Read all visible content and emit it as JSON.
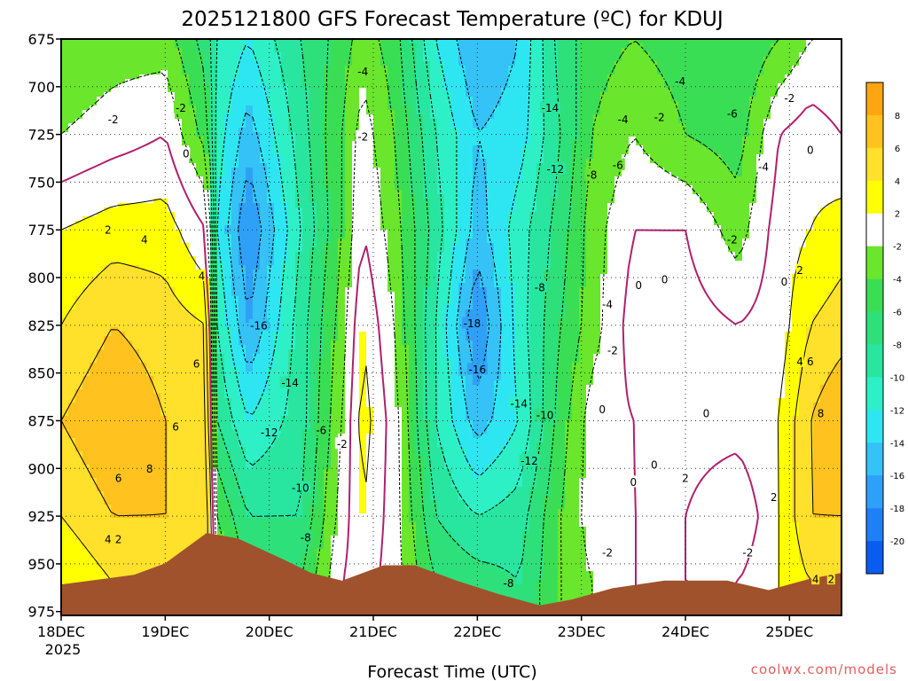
{
  "chart_data": {
    "type": "heatmap",
    "title": "2025121800 GFS Forecast Temperature (ºC) for KDUJ",
    "xlabel": "Forecast Time (UTC)",
    "x_ticks": [
      "18DEC",
      "19DEC",
      "20DEC",
      "21DEC",
      "22DEC",
      "23DEC",
      "24DEC",
      "25DEC"
    ],
    "x_year_label": "2025",
    "xlim_days": [
      18.0,
      25.5
    ],
    "y_ticks": [
      675,
      700,
      725,
      750,
      775,
      800,
      825,
      850,
      875,
      900,
      925,
      950,
      975
    ],
    "ylim": [
      675,
      977
    ],
    "colorbar": {
      "levels": [
        -22,
        -20,
        -18,
        -16,
        -14,
        -12,
        -10,
        -8,
        -6,
        -4,
        -2,
        2,
        4,
        6,
        8,
        10
      ],
      "labels": [
        "-20",
        "-18",
        "-16",
        "-14",
        "-12",
        "-10",
        "-8",
        "-6",
        "-4",
        "-2",
        "2",
        "4",
        "6",
        "8"
      ],
      "colors": [
        "#0a5cf0",
        "#1f7ff5",
        "#2fa0f7",
        "#34c2f7",
        "#2ee6f2",
        "#2ef0c6",
        "#28e6a0",
        "#2ee07a",
        "#3ade55",
        "#6ae62c",
        "#ffffff",
        "#ffff00",
        "#ffe02a",
        "#ffc21e",
        "#ffa512"
      ]
    },
    "columns": [
      {
        "day": 18.0,
        "t": {
          "675": -4,
          "725": -2,
          "775": 2,
          "825": 4,
          "875": 6,
          "925": 4,
          "960": 2
        }
      },
      {
        "day": 18.5,
        "t": {
          "675": -3,
          "725": -1,
          "775": 3,
          "825": 6,
          "875": 8,
          "925": 6,
          "960": 4
        }
      },
      {
        "day": 19.0,
        "t": {
          "675": -3,
          "725": 0,
          "775": 3,
          "825": 5,
          "875": 6,
          "925": 6,
          "960": 5
        }
      },
      {
        "day": 19.4,
        "t": {
          "675": -7,
          "725": -5,
          "775": 0,
          "825": 4,
          "875": 5,
          "925": 6,
          "960": 6
        }
      },
      {
        "day": 19.5,
        "t": {
          "675": -10,
          "725": -11,
          "775": -12,
          "825": -10,
          "875": -8,
          "925": -4,
          "960": -2
        }
      },
      {
        "day": 19.8,
        "t": {
          "675": -12,
          "725": -15,
          "775": -18,
          "825": -16,
          "875": -12,
          "925": -8,
          "960": -6
        }
      },
      {
        "day": 20.3,
        "t": {
          "675": -8,
          "725": -9,
          "775": -10,
          "825": -9,
          "875": -9,
          "925": -8,
          "960": -6
        }
      },
      {
        "day": 20.7,
        "t": {
          "675": -5,
          "725": -4,
          "775": -4,
          "825": -3,
          "875": -2,
          "925": -1,
          "960": 0
        }
      },
      {
        "day": 20.9,
        "t": {
          "675": -3,
          "725": -1,
          "775": 0,
          "825": 2,
          "875": 3,
          "925": 2,
          "960": 1
        }
      },
      {
        "day": 21.2,
        "t": {
          "675": -5,
          "725": -4,
          "775": -3,
          "825": -2,
          "875": -1,
          "925": -1,
          "960": -1
        }
      },
      {
        "day": 21.6,
        "t": {
          "675": -12,
          "725": -10,
          "775": -9,
          "825": -10,
          "875": -10,
          "925": -8,
          "960": -6
        }
      },
      {
        "day": 22.0,
        "t": {
          "675": -16,
          "725": -14,
          "775": -15,
          "825": -18,
          "875": -15,
          "925": -10,
          "960": -7
        }
      },
      {
        "day": 22.4,
        "t": {
          "675": -14,
          "725": -13,
          "775": -11,
          "825": -11,
          "875": -12,
          "925": -9,
          "960": -8
        }
      },
      {
        "day": 22.8,
        "t": {
          "675": -7,
          "725": -8,
          "775": -7,
          "825": -6,
          "875": -5,
          "925": -4,
          "960": -4
        }
      },
      {
        "day": 23.1,
        "t": {
          "675": -5,
          "725": -4,
          "775": -3,
          "825": -3,
          "875": -1,
          "925": -1,
          "960": -2
        }
      },
      {
        "day": 23.5,
        "t": {
          "675": -4,
          "725": -2,
          "775": 0,
          "825": 1,
          "875": 0,
          "925": 0,
          "960": 0
        }
      },
      {
        "day": 24.0,
        "t": {
          "675": -5,
          "725": -4,
          "775": 0,
          "825": 1,
          "875": 1,
          "925": 0,
          "960": 0
        }
      },
      {
        "day": 24.5,
        "t": {
          "675": -6,
          "725": -5,
          "775": -3,
          "825": 0,
          "875": 1,
          "925": -2,
          "960": 0
        }
      },
      {
        "day": 24.9,
        "t": {
          "675": -4,
          "725": 0,
          "775": 1,
          "825": 1,
          "875": 2,
          "925": 2,
          "960": 2
        }
      },
      {
        "day": 25.2,
        "t": {
          "675": -2,
          "725": 1,
          "775": 2,
          "825": 4,
          "875": 6,
          "925": 6,
          "960": 4
        }
      },
      {
        "day": 25.5,
        "t": {
          "675": -2,
          "725": 0,
          "775": 3,
          "825": 5,
          "875": 8,
          "925": 6,
          "960": 4
        }
      }
    ],
    "terrain_surface": [
      {
        "day": 18.0,
        "p": 961
      },
      {
        "day": 18.7,
        "p": 956
      },
      {
        "day": 19.0,
        "p": 950
      },
      {
        "day": 19.4,
        "p": 934
      },
      {
        "day": 19.7,
        "p": 937
      },
      {
        "day": 20.1,
        "p": 947
      },
      {
        "day": 20.4,
        "p": 955
      },
      {
        "day": 20.7,
        "p": 959
      },
      {
        "day": 21.1,
        "p": 951
      },
      {
        "day": 21.4,
        "p": 951
      },
      {
        "day": 21.8,
        "p": 959
      },
      {
        "day": 22.2,
        "p": 966
      },
      {
        "day": 22.6,
        "p": 972
      },
      {
        "day": 22.9,
        "p": 969
      },
      {
        "day": 23.3,
        "p": 963
      },
      {
        "day": 23.8,
        "p": 959
      },
      {
        "day": 24.4,
        "p": 959
      },
      {
        "day": 24.8,
        "p": 964
      },
      {
        "day": 25.2,
        "p": 958
      },
      {
        "day": 25.5,
        "p": 955
      }
    ],
    "contour_labels": [
      {
        "text": "-2",
        "day": 18.5,
        "p": 717
      },
      {
        "text": "-2",
        "day": 19.15,
        "p": 711
      },
      {
        "text": "0",
        "day": 19.2,
        "p": 735
      },
      {
        "text": "2",
        "day": 18.45,
        "p": 775
      },
      {
        "text": "4",
        "day": 18.8,
        "p": 780
      },
      {
        "text": "4",
        "day": 19.35,
        "p": 799
      },
      {
        "text": "6",
        "day": 19.3,
        "p": 845
      },
      {
        "text": "6",
        "day": 19.1,
        "p": 878
      },
      {
        "text": "8",
        "day": 18.85,
        "p": 900
      },
      {
        "text": "6",
        "day": 18.55,
        "p": 905
      },
      {
        "text": "4",
        "day": 18.45,
        "p": 937
      },
      {
        "text": "2",
        "day": 18.55,
        "p": 937
      },
      {
        "text": "-16",
        "day": 19.9,
        "p": 825
      },
      {
        "text": "-14",
        "day": 20.2,
        "p": 855
      },
      {
        "text": "-12",
        "day": 20.0,
        "p": 881
      },
      {
        "text": "-10",
        "day": 20.3,
        "p": 910
      },
      {
        "text": "-8",
        "day": 20.35,
        "p": 936
      },
      {
        "text": "-6",
        "day": 20.5,
        "p": 880
      },
      {
        "text": "-2",
        "day": 20.7,
        "p": 887
      },
      {
        "text": "-2",
        "day": 20.9,
        "p": 726
      },
      {
        "text": "-4",
        "day": 20.9,
        "p": 692
      },
      {
        "text": "-14",
        "day": 22.7,
        "p": 711
      },
      {
        "text": "-12",
        "day": 22.75,
        "p": 743
      },
      {
        "text": "-8",
        "day": 22.6,
        "p": 805
      },
      {
        "text": "-18",
        "day": 21.95,
        "p": 824
      },
      {
        "text": "-16",
        "day": 22.0,
        "p": 848
      },
      {
        "text": "-14",
        "day": 22.4,
        "p": 866
      },
      {
        "text": "-10",
        "day": 22.65,
        "p": 872
      },
      {
        "text": "-12",
        "day": 22.5,
        "p": 896
      },
      {
        "text": "-8",
        "day": 22.3,
        "p": 960
      },
      {
        "text": "-8",
        "day": 23.1,
        "p": 746
      },
      {
        "text": "-6",
        "day": 23.35,
        "p": 741
      },
      {
        "text": "-4",
        "day": 23.4,
        "p": 717
      },
      {
        "text": "-4",
        "day": 23.25,
        "p": 814
      },
      {
        "text": "-2",
        "day": 23.3,
        "p": 838
      },
      {
        "text": "-2",
        "day": 23.25,
        "p": 944
      },
      {
        "text": "0",
        "day": 23.2,
        "p": 869
      },
      {
        "text": "0",
        "day": 23.55,
        "p": 804
      },
      {
        "text": "0",
        "day": 23.8,
        "p": 801
      },
      {
        "text": "0",
        "day": 23.5,
        "p": 907
      },
      {
        "text": "0",
        "day": 23.7,
        "p": 898
      },
      {
        "text": "2",
        "day": 24.0,
        "p": 905
      },
      {
        "text": "0",
        "day": 24.2,
        "p": 871
      },
      {
        "text": "-2",
        "day": 23.75,
        "p": 716
      },
      {
        "text": "-4",
        "day": 23.95,
        "p": 697
      },
      {
        "text": "-6",
        "day": 24.45,
        "p": 714
      },
      {
        "text": "-4",
        "day": 24.75,
        "p": 742
      },
      {
        "text": "-2",
        "day": 24.45,
        "p": 780
      },
      {
        "text": "-2",
        "day": 25.0,
        "p": 706
      },
      {
        "text": "0",
        "day": 25.2,
        "p": 733
      },
      {
        "text": "0",
        "day": 24.95,
        "p": 802
      },
      {
        "text": "2",
        "day": 25.1,
        "p": 796
      },
      {
        "text": "-2",
        "day": 24.6,
        "p": 944
      },
      {
        "text": "2",
        "day": 24.85,
        "p": 915
      },
      {
        "text": "4",
        "day": 25.1,
        "p": 844
      },
      {
        "text": "6",
        "day": 25.2,
        "p": 844
      },
      {
        "text": "8",
        "day": 25.3,
        "p": 871
      },
      {
        "text": "4",
        "day": 25.25,
        "p": 958
      },
      {
        "text": "2",
        "day": 25.4,
        "p": 958
      }
    ]
  },
  "watermark": "coolwx.com/models"
}
